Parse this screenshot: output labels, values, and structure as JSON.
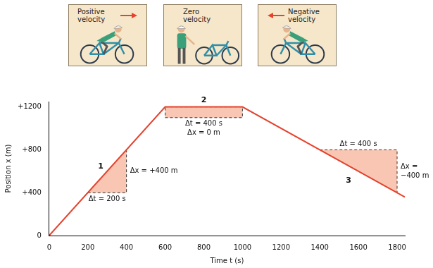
{
  "chart_data": {
    "type": "line",
    "x_label": "Time t (s)",
    "y_label": "Position x (m)",
    "x": [
      0,
      600,
      1000,
      1840
    ],
    "values": [
      0,
      1200,
      1200,
      360
    ],
    "color": "#e5432d",
    "xlim": [
      0,
      1840
    ],
    "xticks": [
      0,
      200,
      400,
      600,
      800,
      1000,
      1200,
      1400,
      1600,
      1800
    ],
    "ylim": [
      0,
      1250
    ],
    "yticks": [
      0,
      {
        "value": 400,
        "label": "+400"
      },
      {
        "value": 800,
        "label": "+800"
      },
      {
        "value": 1200,
        "label": "+1200"
      }
    ],
    "grid": false,
    "annotations": [
      {
        "label": "1",
        "color": "#f8c6b2",
        "vertices": [
          [
            200,
            400
          ],
          [
            400,
            400
          ],
          [
            400,
            800
          ]
        ],
        "dt": "Δt = 200 s",
        "dx": [
          "Δx = +400 m"
        ]
      },
      {
        "label": "2",
        "color": "#f8c6b2",
        "vertices": [
          [
            600,
            1200
          ],
          [
            1000,
            1200
          ],
          [
            1000,
            1100
          ],
          [
            600,
            1100
          ]
        ],
        "dt": "Δt = 400 s",
        "dx": [
          "Δx = 0 m"
        ]
      },
      {
        "label": "3",
        "color": "#f8c6b2",
        "vertices": [
          [
            1400,
            800
          ],
          [
            1800,
            800
          ],
          [
            1800,
            400
          ]
        ],
        "dt": "Δt = 400 s",
        "dx": [
          "Δx =",
          "−400 m"
        ]
      }
    ]
  },
  "panels": [
    {
      "text": "Positive velocity",
      "arrow": "right"
    },
    {
      "text": "Zero velocity"
    },
    {
      "text": "Negative velocity",
      "arrow": "left"
    }
  ]
}
